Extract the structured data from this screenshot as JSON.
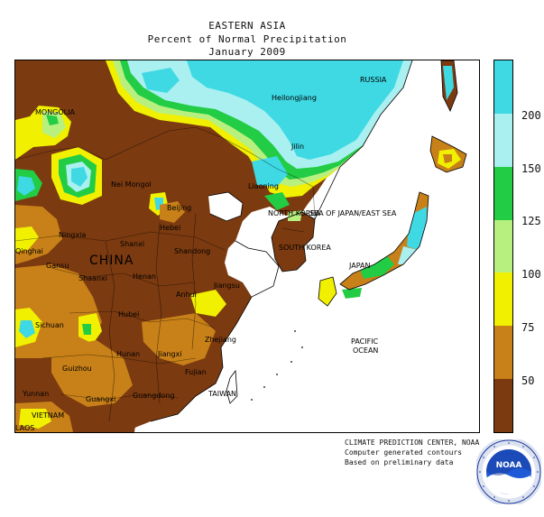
{
  "title": {
    "line1": "EASTERN ASIA",
    "line2": "Percent of Normal Precipitation",
    "line3": "January 2009"
  },
  "map_labels": [
    {
      "text": "MONGOLIA",
      "size": "small"
    },
    {
      "text": "RUSSIA",
      "size": "small"
    },
    {
      "text": "Heilongjiang",
      "size": "small"
    },
    {
      "text": "Jilin",
      "size": "small"
    },
    {
      "text": "Nei Mongol",
      "size": "small"
    },
    {
      "text": "Liaoning",
      "size": "small"
    },
    {
      "text": "Beijing",
      "size": "small"
    },
    {
      "text": "NORTH KOREA",
      "size": "small"
    },
    {
      "text": "SOUTH KOREA",
      "size": "small"
    },
    {
      "text": "SEA OF JAPAN/EAST SEA",
      "size": "small"
    },
    {
      "text": "Ningxia",
      "size": "small"
    },
    {
      "text": "Shanxi",
      "size": "small"
    },
    {
      "text": "Hebei",
      "size": "small"
    },
    {
      "text": "Shandong",
      "size": "small"
    },
    {
      "text": "Qinghai",
      "size": "small"
    },
    {
      "text": "CHINA",
      "size": "big"
    },
    {
      "text": "Gansu",
      "size": "small"
    },
    {
      "text": "Shaanxi",
      "size": "small"
    },
    {
      "text": "Henan",
      "size": "small"
    },
    {
      "text": "Jiangsu",
      "size": "small"
    },
    {
      "text": "Anhui",
      "size": "small"
    },
    {
      "text": "JAPAN",
      "size": "small"
    },
    {
      "text": "Sichuan",
      "size": "small"
    },
    {
      "text": "Hubei",
      "size": "small"
    },
    {
      "text": "Zhejiang",
      "size": "small"
    },
    {
      "text": "Hunan",
      "size": "small"
    },
    {
      "text": "Jiangxi",
      "size": "small"
    },
    {
      "text": "PACIFIC",
      "size": "small"
    },
    {
      "text": "OCEAN",
      "size": "small"
    },
    {
      "text": "Guizhou",
      "size": "small"
    },
    {
      "text": "Fujian",
      "size": "small"
    },
    {
      "text": "Yunnan",
      "size": "small"
    },
    {
      "text": "Guangxi",
      "size": "small"
    },
    {
      "text": "Guangdong",
      "size": "small"
    },
    {
      "text": "TAIWAN",
      "size": "small"
    },
    {
      "text": "VIETNAM",
      "size": "small"
    },
    {
      "text": "LAOS",
      "size": "small"
    }
  ],
  "legend": {
    "ticks": [
      "200",
      "150",
      "125",
      "100",
      "75",
      "50"
    ],
    "bins": [
      {
        "color": "#3fd9e4",
        "from": 200,
        "to": null
      },
      {
        "color": "#aaf0f0",
        "from": 150,
        "to": 200
      },
      {
        "color": "#22cc44",
        "from": 125,
        "to": 150
      },
      {
        "color": "#b8f080",
        "from": 100,
        "to": 125
      },
      {
        "color": "#f0f000",
        "from": 75,
        "to": 100
      },
      {
        "color": "#c88018",
        "from": 50,
        "to": 75
      },
      {
        "color": "#7b3a10",
        "from": null,
        "to": 50
      }
    ]
  },
  "credits": {
    "line1": "CLIMATE PREDICTION CENTER, NOAA",
    "line2": "Computer generated contours",
    "line3": "Based on preliminary data"
  },
  "logo": {
    "name": "noaa-logo",
    "text": "NOAA",
    "ring_text": "NATIONAL OCEANIC AND ATMOSPHERIC ADMINISTRATION · U.S. DEPARTMENT OF COMMERCE"
  }
}
